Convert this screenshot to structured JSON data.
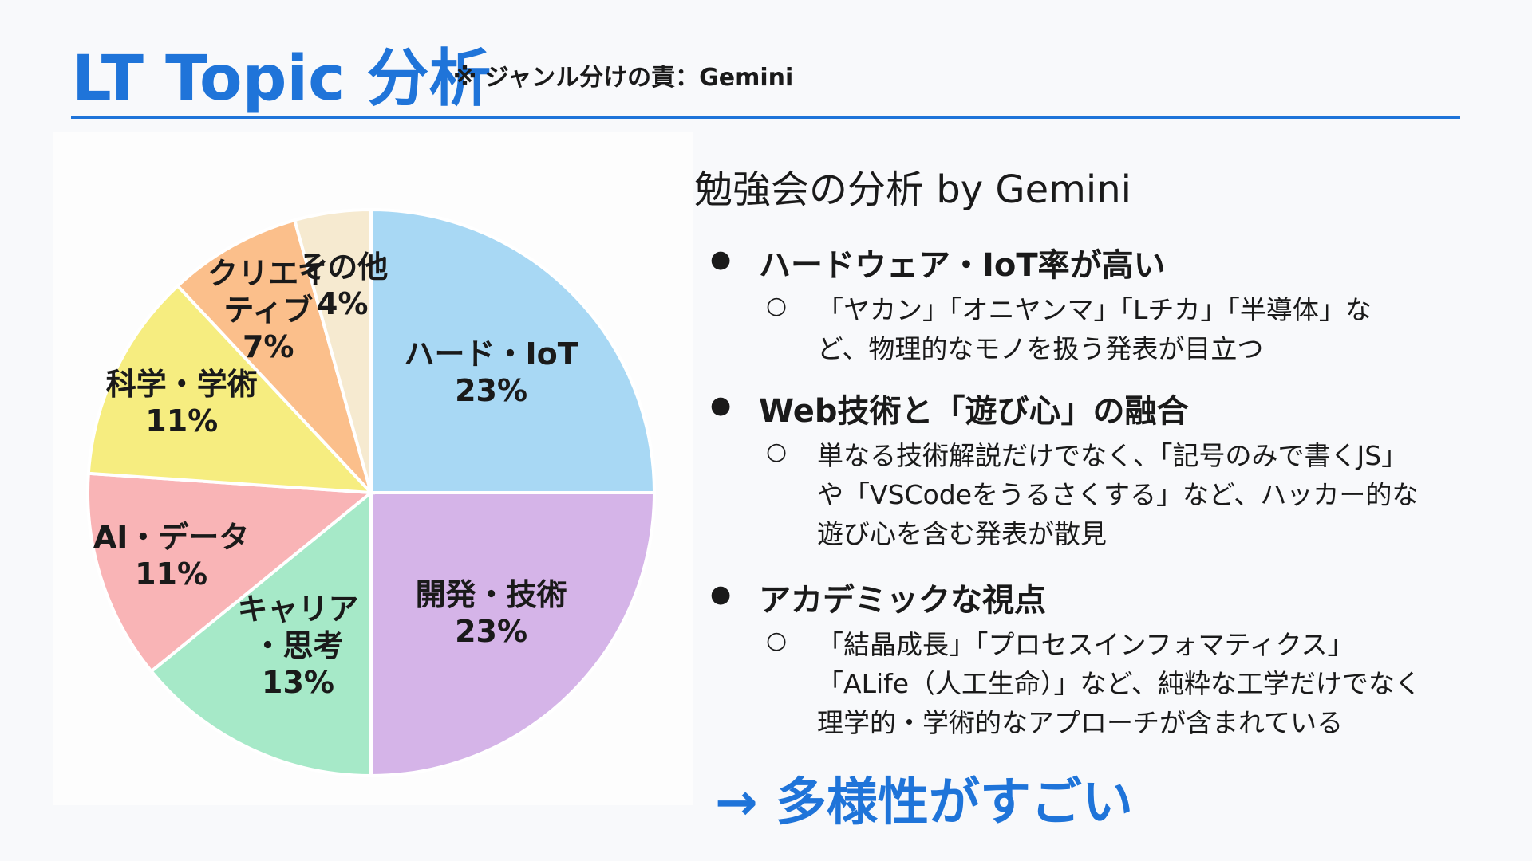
{
  "header": {
    "title": "LT Topic 分析",
    "note": "※ ジャンル分けの責：Gemini"
  },
  "chart_data": {
    "type": "pie",
    "categories": [
      "ハード・IoT",
      "開発・技術",
      "キャリア\n・思考",
      "AI・データ",
      "科学・学術",
      "クリエイ\nティブ",
      "その他"
    ],
    "values": [
      23,
      23,
      13,
      11,
      11,
      7,
      4
    ],
    "value_labels": [
      "23%",
      "23%",
      "13%",
      "11%",
      "11%",
      "7%",
      "4%"
    ],
    "colors": [
      "#a8d8f4",
      "#d5b4e8",
      "#a6e9c8",
      "#f9b4b6",
      "#f6ed80",
      "#fbbf8b",
      "#f6ead0"
    ]
  },
  "analysis": {
    "title": "勉強会の分析 by Gemini",
    "bullets": [
      {
        "heading": "ハードウェア・IoT率が高い",
        "lines": [
          "「ヤカン」「オニヤンマ」「Lチカ」「半導体」な",
          "ど、物理的なモノを扱う発表が目立つ"
        ]
      },
      {
        "heading": "Web技術と「遊び心」の融合",
        "lines": [
          "単なる技術解説だけでなく、「記号のみで書くJS」",
          "や「VSCodeをうるさくする」など、ハッカー的な",
          "遊び心を含む発表が散見"
        ]
      },
      {
        "heading": "アカデミックな視点",
        "lines": [
          "「結晶成長」「プロセスインフォマティクス」",
          "「ALife（人工生命）」など、純粋な工学だけでなく",
          "理学的・学術的なアプローチが含まれている"
        ]
      }
    ],
    "conclusion": "→ 多様性がすごい"
  }
}
